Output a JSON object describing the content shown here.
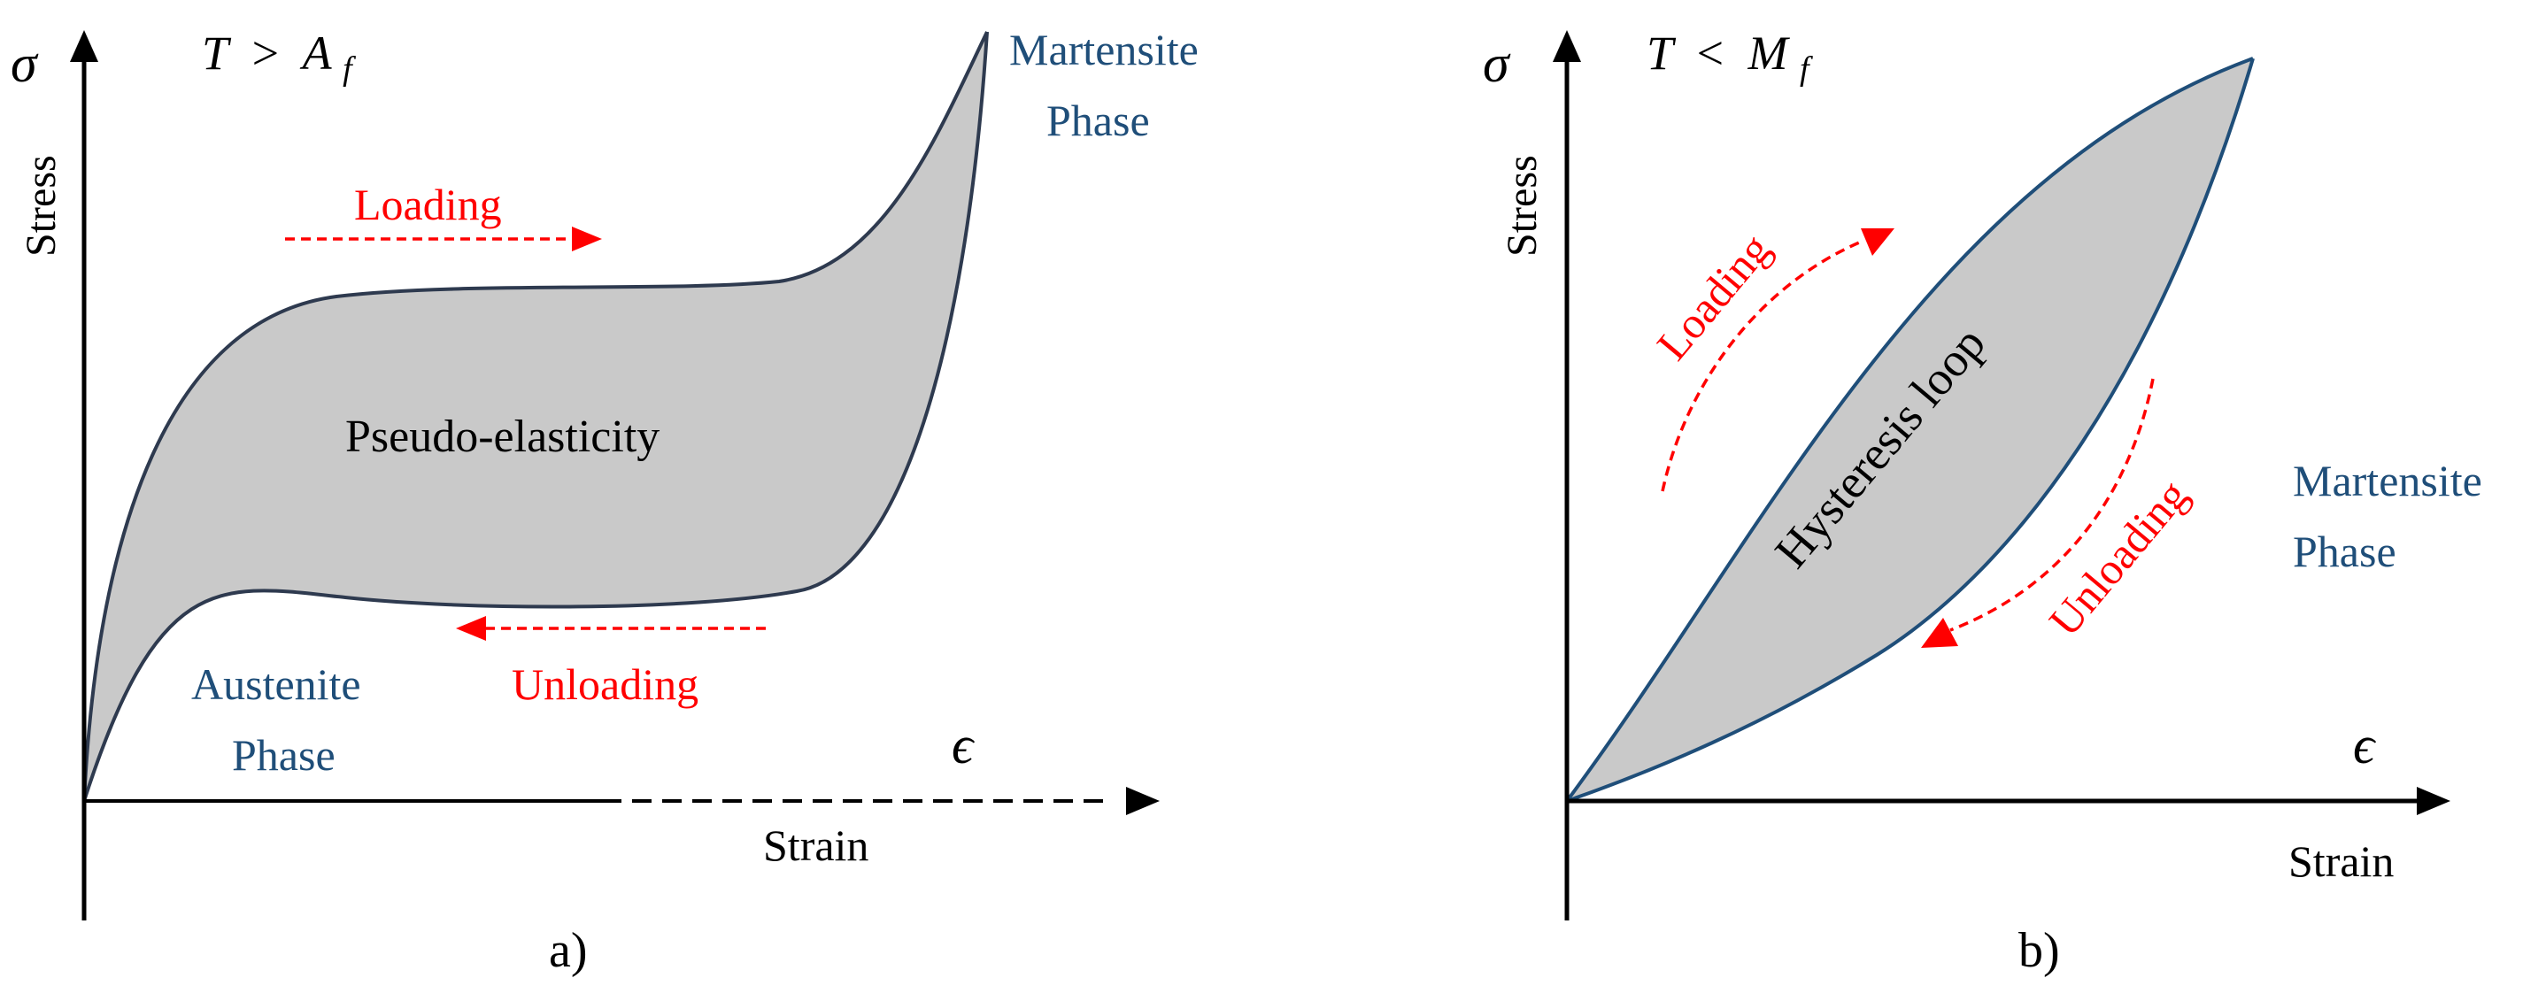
{
  "colors": {
    "fill_region": "#C9C9C9",
    "curve_stroke": "#2E3A4F",
    "curve_stroke_b": "#1F4E79",
    "phase_text": "#1F4E79",
    "arrow_red": "#FF0000",
    "axis": "#000000"
  },
  "panel_a": {
    "y_symbol": "σ",
    "y_label": "Stress",
    "x_symbol": "ϵ",
    "x_label": "Strain",
    "condition_T": "T",
    "condition_op": ">",
    "condition_var": "A",
    "condition_sub": "f",
    "region_label": "Pseudo-elasticity",
    "loading_label": "Loading",
    "unloading_label": "Unloading",
    "start_phase_line1": "Austenite",
    "start_phase_line2": "Phase",
    "end_phase_line1": "Martensite",
    "end_phase_line2": "Phase",
    "caption": "a)"
  },
  "panel_b": {
    "y_symbol": "σ",
    "y_label": "Stress",
    "x_symbol": "ϵ",
    "x_label": "Strain",
    "condition_T": "T",
    "condition_op": "<",
    "condition_var": "M",
    "condition_sub": "f",
    "region_label": "Hysteresis loop",
    "loading_label": "Loading",
    "unloading_label": "Unloading",
    "end_phase_line1": "Martensite",
    "end_phase_line2": "Phase",
    "caption": "b)"
  }
}
